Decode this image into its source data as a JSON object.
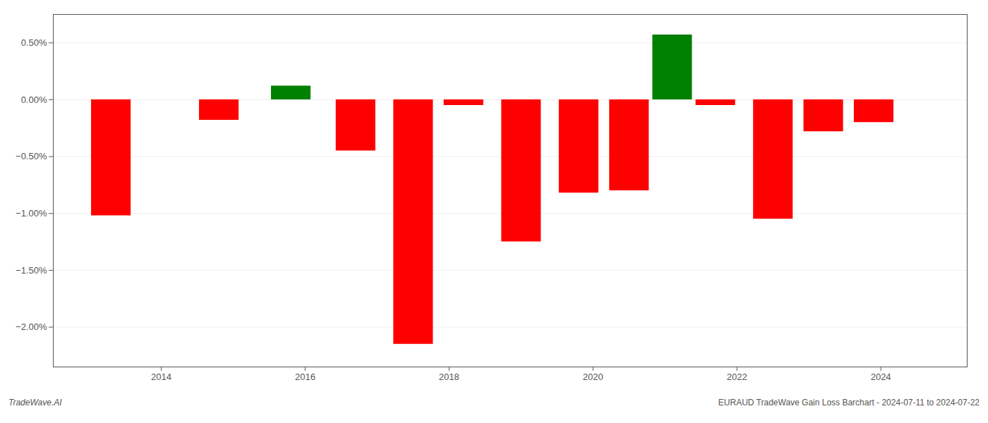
{
  "chart_data": {
    "type": "bar",
    "x": [
      2013.3,
      2014.8,
      2015.8,
      2016.7,
      2017.5,
      2018.2,
      2019.0,
      2019.8,
      2020.5,
      2021.1,
      2021.7,
      2022.5,
      2023.2,
      2023.9
    ],
    "values": [
      -1.02,
      -0.18,
      0.12,
      -0.45,
      -2.15,
      -0.05,
      -1.25,
      -0.82,
      -0.8,
      0.57,
      -0.05,
      -1.05,
      -0.28,
      -0.2
    ],
    "colors": [
      "#ff0000",
      "#ff0000",
      "#008000",
      "#ff0000",
      "#ff0000",
      "#ff0000",
      "#ff0000",
      "#ff0000",
      "#ff0000",
      "#008000",
      "#ff0000",
      "#ff0000",
      "#ff0000",
      "#ff0000"
    ],
    "xlim": [
      2012.5,
      2025.2
    ],
    "ylim": [
      -2.35,
      0.75
    ],
    "xticks": [
      2014,
      2016,
      2018,
      2020,
      2022,
      2024
    ],
    "yticks": [
      {
        "value": 0.5,
        "label": "0.50%"
      },
      {
        "value": 0.0,
        "label": "0.00%"
      },
      {
        "value": -0.5,
        "label": "−0.50%"
      },
      {
        "value": -1.0,
        "label": "−1.00%"
      },
      {
        "value": -1.5,
        "label": "−1.50%"
      },
      {
        "value": -2.0,
        "label": "−2.00%"
      }
    ],
    "grid": true,
    "annotations": [
      "TradeWave.AI",
      "EURAUD TradeWave Gain Loss Barchart - 2024-07-11 to 2024-07-22"
    ]
  }
}
